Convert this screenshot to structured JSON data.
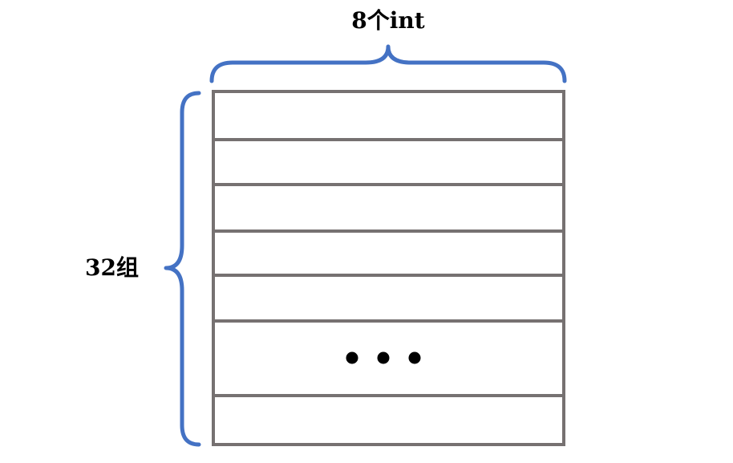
{
  "top_label": "8个int",
  "left_label": "32组",
  "ellipsis": "• • •",
  "colors": {
    "brace": "#4472C4",
    "grid": "#767171",
    "text": "#000000",
    "dots": "#000000"
  }
}
